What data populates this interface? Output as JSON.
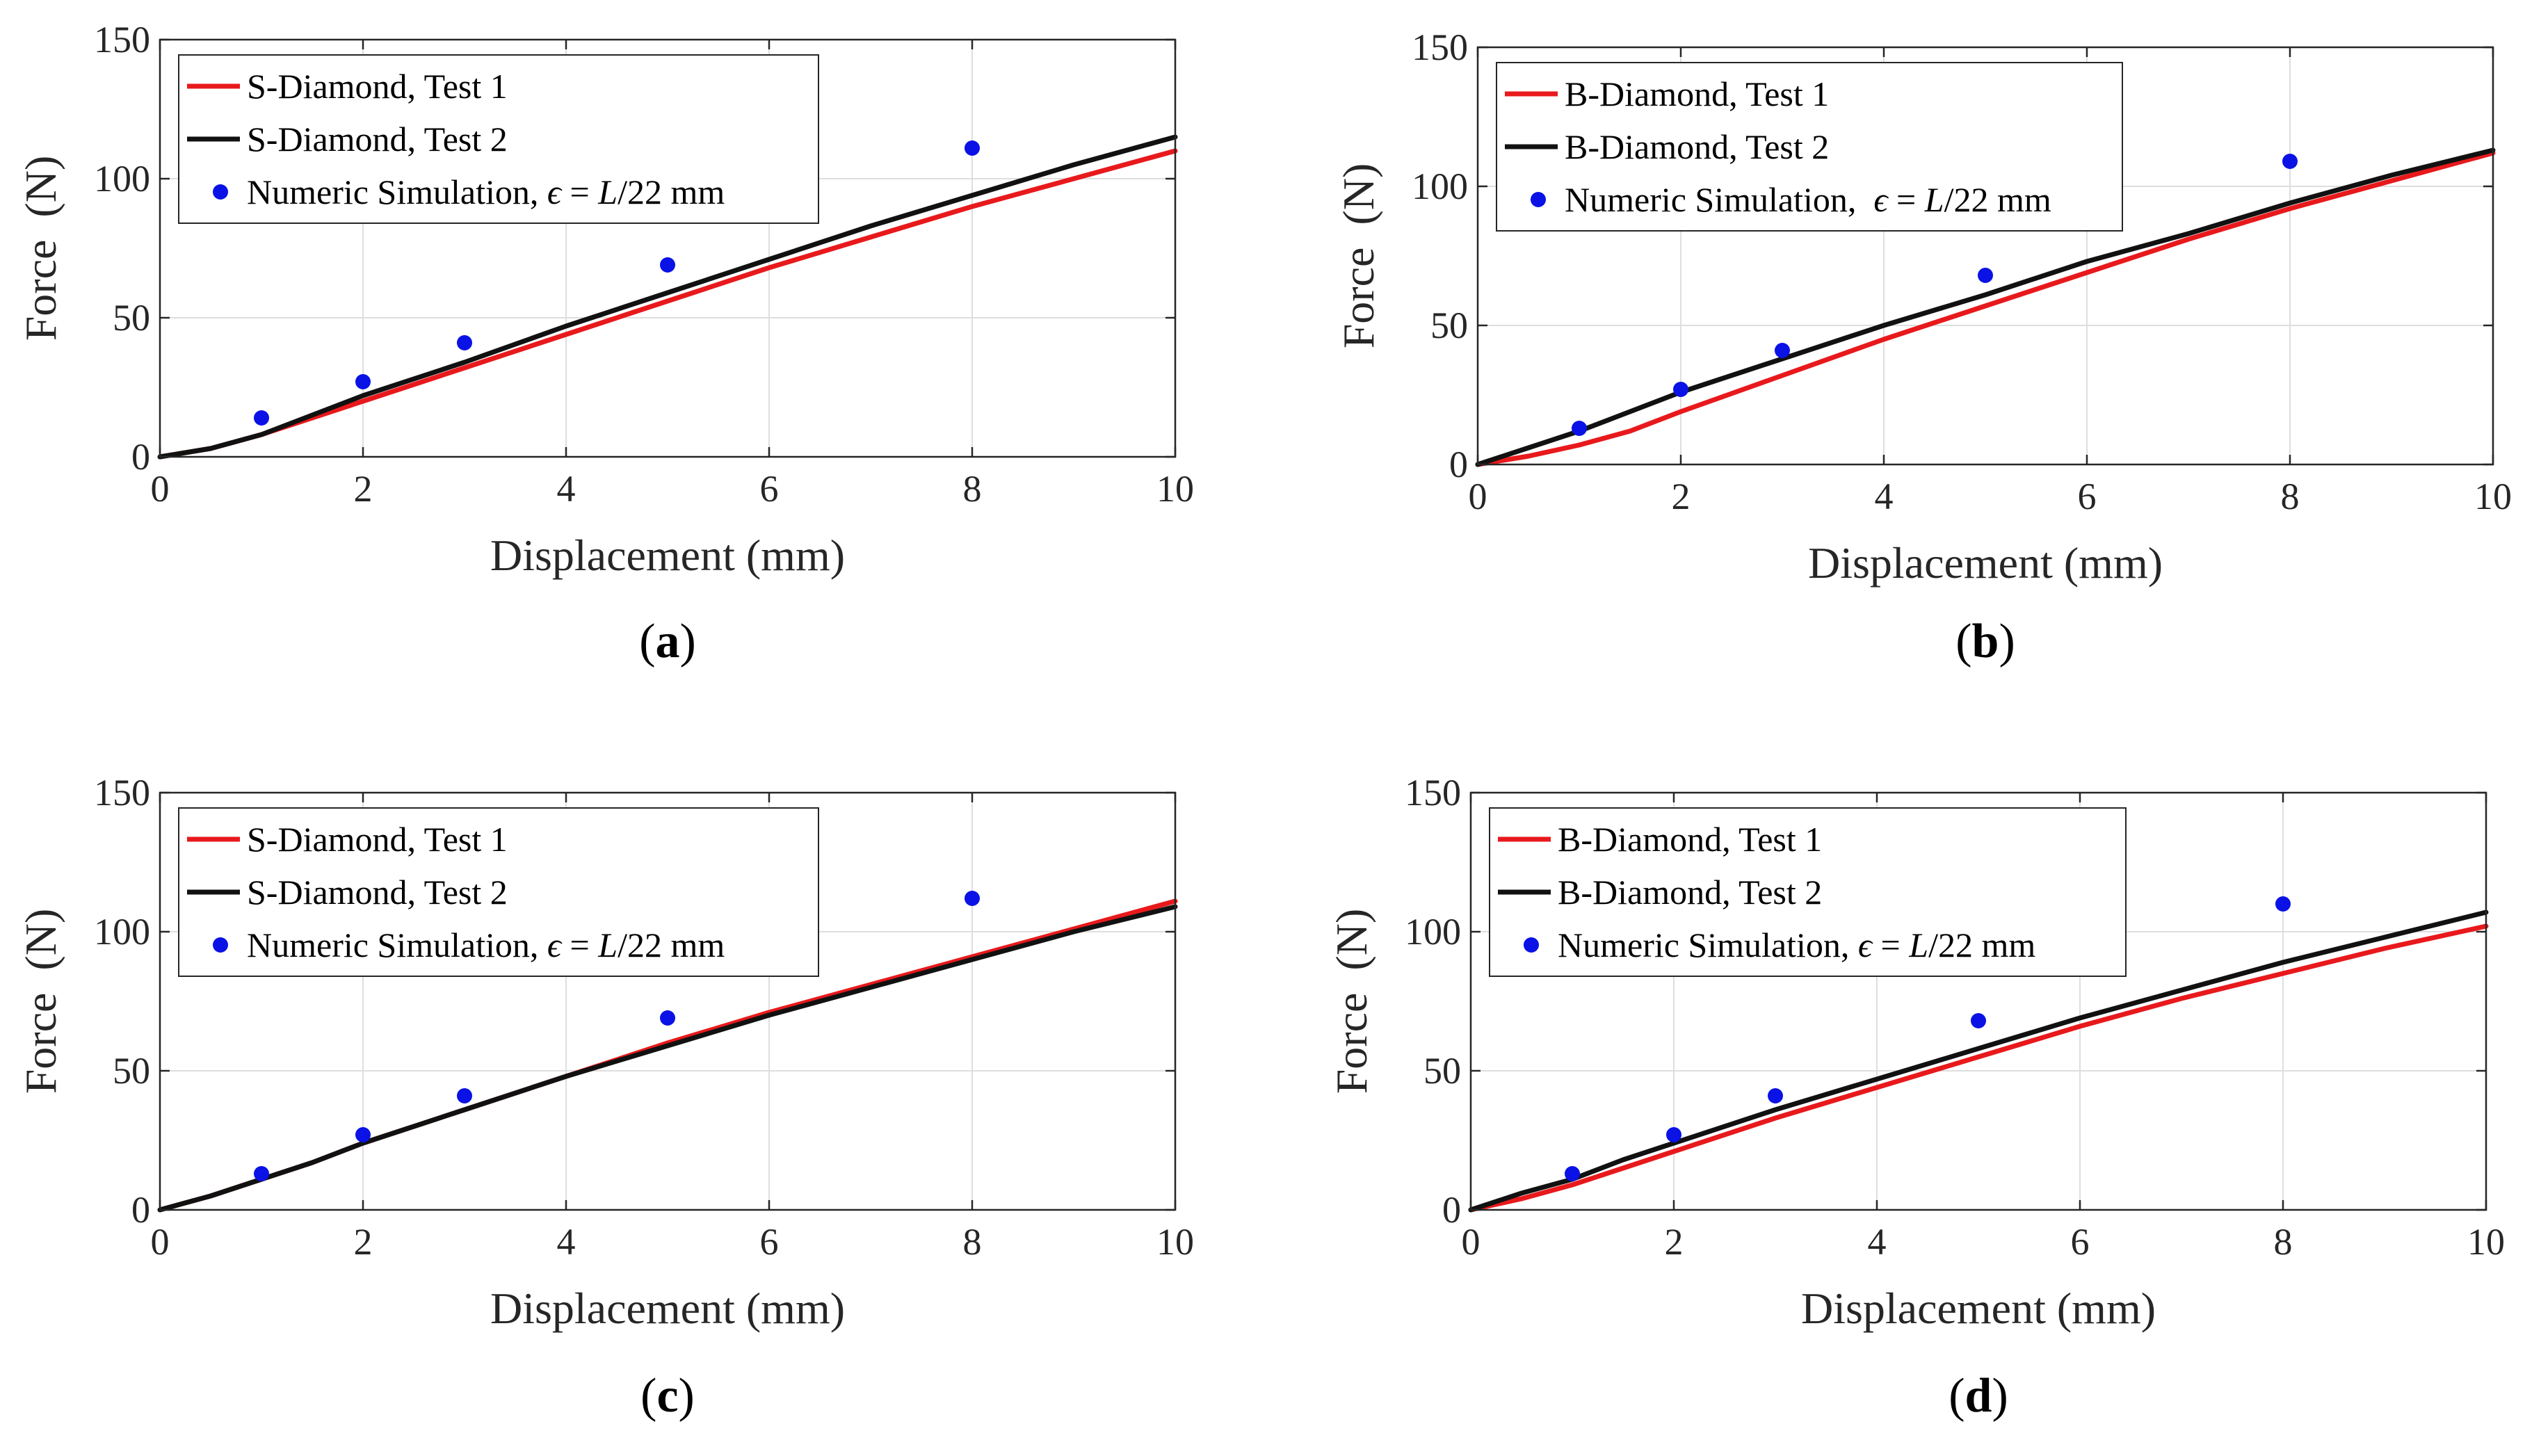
{
  "figure": {
    "colors": {
      "test1": "#e8191c",
      "test2": "#111111",
      "simulation": "#0a12e6",
      "grid": "#dedede",
      "axis": "#262626"
    }
  },
  "chart_data": [
    {
      "type": "line",
      "panel": "a",
      "caption": "a",
      "xlabel": "Displacement (mm)",
      "ylabel": "Force  (N)",
      "xlim": [
        0,
        10
      ],
      "ylim": [
        0,
        150
      ],
      "xticks": [
        "0",
        "2",
        "4",
        "6",
        "8",
        "10"
      ],
      "yticks": [
        "0",
        "50",
        "100",
        "150"
      ],
      "legend_position": "top-left",
      "series": [
        {
          "name": "S-Diamond, Test 1",
          "kind": "line",
          "color": "#e8191c",
          "x": [
            0,
            0.5,
            1,
            1.5,
            2,
            3,
            4,
            5,
            6,
            7,
            8,
            9,
            10
          ],
          "y": [
            0,
            3,
            8,
            14,
            20,
            32,
            44,
            56,
            68,
            79,
            90,
            100,
            110
          ]
        },
        {
          "name": "S-Diamond, Test 2",
          "kind": "line",
          "color": "#111111",
          "x": [
            0,
            0.5,
            1,
            1.5,
            2,
            3,
            4,
            5,
            6,
            7,
            8,
            9,
            10
          ],
          "y": [
            0,
            3,
            8,
            15,
            22,
            34,
            47,
            59,
            71,
            83,
            94,
            105,
            115
          ]
        },
        {
          "name": "Numeric Simulation, ϵ = L/22 mm",
          "kind": "scatter",
          "color": "#0a12e6",
          "x": [
            1,
            2,
            3,
            5,
            8
          ],
          "y": [
            14,
            27,
            41,
            69,
            111
          ]
        }
      ],
      "legend_label_parts": {
        "prefix": "Numeric Simulation, ",
        "symbol": "ϵ",
        "eq": " = ",
        "var": "L",
        "suffix": "/22 mm"
      }
    },
    {
      "type": "line",
      "panel": "b",
      "caption": "b",
      "xlabel": "Displacement (mm)",
      "ylabel": "Force  (N)",
      "xlim": [
        0,
        10
      ],
      "ylim": [
        0,
        150
      ],
      "xticks": [
        "0",
        "2",
        "4",
        "6",
        "8",
        "10"
      ],
      "yticks": [
        "0",
        "50",
        "100",
        "150"
      ],
      "legend_position": "top-left",
      "series": [
        {
          "name": "B-Diamond, Test 1",
          "kind": "line",
          "color": "#e8191c",
          "x": [
            0,
            0.5,
            1,
            1.5,
            2,
            3,
            4,
            5,
            6,
            7,
            8,
            9,
            10
          ],
          "y": [
            0,
            3,
            7,
            12,
            19,
            32,
            45,
            57,
            69,
            81,
            92,
            102,
            112
          ]
        },
        {
          "name": "B-Diamond, Test 2",
          "kind": "line",
          "color": "#111111",
          "x": [
            0,
            0.5,
            1,
            1.5,
            2,
            3,
            4,
            5,
            6,
            7,
            8,
            9,
            10
          ],
          "y": [
            0,
            6,
            12,
            19,
            26,
            38,
            50,
            61,
            73,
            83,
            94,
            104,
            113
          ]
        },
        {
          "name": "Numeric Simulation,  ϵ = L/22 mm",
          "kind": "scatter",
          "color": "#0a12e6",
          "x": [
            1,
            2,
            3,
            5,
            8
          ],
          "y": [
            13,
            27,
            41,
            68,
            109
          ]
        }
      ],
      "legend_label_parts": {
        "prefix": "Numeric Simulation,  ",
        "symbol": "ϵ",
        "eq": " = ",
        "var": "L",
        "suffix": "/22 mm"
      }
    },
    {
      "type": "line",
      "panel": "c",
      "caption": "c",
      "xlabel": "Displacement (mm)",
      "ylabel": "Force  (N)",
      "xlim": [
        0,
        10
      ],
      "ylim": [
        0,
        150
      ],
      "xticks": [
        "0",
        "2",
        "4",
        "6",
        "8",
        "10"
      ],
      "yticks": [
        "0",
        "50",
        "100",
        "150"
      ],
      "legend_position": "top-left",
      "series": [
        {
          "name": "S-Diamond, Test 1",
          "kind": "line",
          "color": "#e8191c",
          "x": [
            0,
            0.5,
            1,
            1.5,
            2,
            3,
            4,
            5,
            6,
            7,
            8,
            9,
            10
          ],
          "y": [
            0,
            5,
            11,
            17,
            24,
            36,
            48,
            60,
            71,
            81,
            91,
            101,
            111
          ]
        },
        {
          "name": "S-Diamond, Test 2",
          "kind": "line",
          "color": "#111111",
          "x": [
            0,
            0.5,
            1,
            1.5,
            2,
            3,
            4,
            5,
            6,
            7,
            8,
            9,
            10
          ],
          "y": [
            0,
            5,
            11,
            17,
            24,
            36,
            48,
            59,
            70,
            80,
            90,
            100,
            109
          ]
        },
        {
          "name": "Numeric Simulation, ϵ = L/22 mm",
          "kind": "scatter",
          "color": "#0a12e6",
          "x": [
            1,
            2,
            3,
            5,
            8
          ],
          "y": [
            13,
            27,
            41,
            69,
            112
          ]
        }
      ],
      "legend_label_parts": {
        "prefix": "Numeric Simulation, ",
        "symbol": "ϵ",
        "eq": " = ",
        "var": "L",
        "suffix": "/22 mm"
      }
    },
    {
      "type": "line",
      "panel": "d",
      "caption": "d",
      "xlabel": "Displacement (mm)",
      "ylabel": "Force  (N)",
      "xlim": [
        0,
        10
      ],
      "ylim": [
        0,
        150
      ],
      "xticks": [
        "0",
        "2",
        "4",
        "6",
        "8",
        "10"
      ],
      "yticks": [
        "0",
        "50",
        "100",
        "150"
      ],
      "legend_position": "top-left",
      "series": [
        {
          "name": "B-Diamond, Test 1",
          "kind": "line",
          "color": "#e8191c",
          "x": [
            0,
            0.5,
            1,
            1.5,
            2,
            3,
            4,
            5,
            6,
            7,
            8,
            9,
            10
          ],
          "y": [
            0,
            4,
            9,
            15,
            21,
            33,
            44,
            55,
            66,
            76,
            85,
            94,
            102
          ]
        },
        {
          "name": "B-Diamond, Test 2",
          "kind": "line",
          "color": "#111111",
          "x": [
            0,
            0.5,
            1,
            1.5,
            2,
            3,
            4,
            5,
            6,
            7,
            8,
            9,
            10
          ],
          "y": [
            0,
            6,
            11,
            18,
            24,
            36,
            47,
            58,
            69,
            79,
            89,
            98,
            107
          ]
        },
        {
          "name": "Numeric Simulation, ϵ = L/22 mm",
          "kind": "scatter",
          "color": "#0a12e6",
          "x": [
            1,
            2,
            3,
            5,
            8
          ],
          "y": [
            13,
            27,
            41,
            68,
            110
          ]
        }
      ],
      "legend_label_parts": {
        "prefix": "Numeric Simulation, ",
        "symbol": "ϵ",
        "eq": " = ",
        "var": "L",
        "suffix": "/22 mm"
      }
    }
  ]
}
